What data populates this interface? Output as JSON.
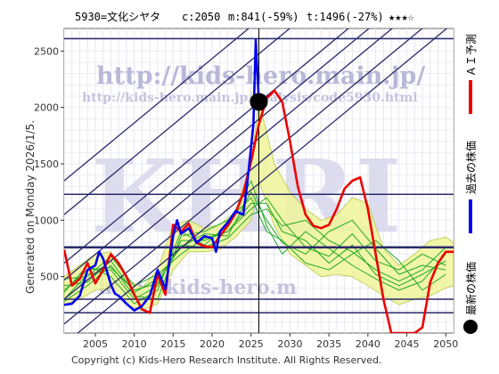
{
  "header": {
    "code": "5930=文化シヤタ",
    "current": "c:2050",
    "m_value": "m:841(-59%)",
    "t_value": "t:1496(-27%)",
    "rating": "★★★☆"
  },
  "side_text": "Generated on Monday 2026/1/5.",
  "copyright": "Copyright (c) Kids-Hero Research Institute. All Rights Reserved.",
  "watermarks": {
    "url_main": "http://kids-hero.main.jp/",
    "url_analysis": "http://kids-hero.main.jp/analysis/code5930.html",
    "logo": "KHRI",
    "url_lower": "http://kids-hero.m"
  },
  "legend": {
    "forecast": "ＡＩ予測",
    "past": "過去の株価",
    "latest": "最新の株価"
  },
  "colors": {
    "past": "#0000ee",
    "forecast": "#ee0000",
    "band_fill": "#eef59a",
    "sim": "#22aa22",
    "hline": "#2a2a6a",
    "channel": "#2a2a6a"
  },
  "chart_data": {
    "type": "line",
    "xlim": [
      2001,
      2051
    ],
    "ylim": [
      0,
      2700
    ],
    "x_ticks": [
      2005,
      2010,
      2015,
      2020,
      2025,
      2030,
      2035,
      2040,
      2045,
      2050
    ],
    "y_ticks": [
      500,
      1000,
      1500,
      2000,
      2500
    ],
    "grid": true,
    "latest_point": {
      "x": 2026.0,
      "y": 2050
    },
    "hlines": [
      180,
      300,
      760,
      1230,
      2610
    ],
    "vline": 2026.0,
    "channel_slope": 57,
    "channel_intercepts_2001": [
      -100,
      80,
      300,
      470,
      620,
      1050,
      1350
    ],
    "series": [
      {
        "role": "past",
        "x": [
          2001,
          2002,
          2003,
          2004,
          2005,
          2005.5,
          2006,
          2007,
          2007.5,
          2008,
          2009,
          2010,
          2011,
          2012,
          2013,
          2014,
          2015,
          2015.5,
          2016,
          2017,
          2018,
          2019,
          2020,
          2020.5,
          2021,
          2022,
          2023,
          2024,
          2024.5,
          2025,
          2025.3,
          2025.6,
          2026
        ],
        "y": [
          250,
          260,
          330,
          560,
          600,
          720,
          660,
          430,
          350,
          330,
          260,
          200,
          240,
          330,
          560,
          390,
          860,
          1000,
          880,
          930,
          800,
          860,
          840,
          720,
          900,
          980,
          1080,
          1050,
          1320,
          1650,
          1850,
          2600,
          2050
        ]
      },
      {
        "role": "forecast",
        "x": [
          2001,
          2002,
          2003,
          2004,
          2005,
          2006,
          2007,
          2008,
          2009,
          2010,
          2011,
          2012,
          2013,
          2014,
          2015,
          2016,
          2017,
          2018,
          2019,
          2020,
          2021,
          2022,
          2023,
          2024,
          2025,
          2026,
          2027,
          2028,
          2029,
          2030,
          2031,
          2032,
          2033,
          2034,
          2035,
          2036,
          2037,
          2038,
          2039,
          2040,
          2041,
          2042,
          2043,
          2044,
          2045,
          2046,
          2047,
          2048,
          2049,
          2050,
          2051
        ],
        "y": [
          740,
          420,
          480,
          620,
          440,
          560,
          700,
          620,
          500,
          340,
          210,
          180,
          520,
          340,
          960,
          900,
          970,
          800,
          770,
          760,
          860,
          950,
          1060,
          1240,
          1520,
          1850,
          2080,
          2150,
          2050,
          1700,
          1300,
          1050,
          950,
          930,
          960,
          1100,
          1280,
          1350,
          1380,
          1100,
          700,
          300,
          0,
          0,
          0,
          0,
          50,
          450,
          620,
          720,
          720
        ]
      },
      {
        "role": "band_upper",
        "x": [
          2001,
          2003,
          2005,
          2007,
          2009,
          2011,
          2013,
          2015,
          2017,
          2019,
          2021,
          2023,
          2025,
          2026,
          2028,
          2030,
          2032,
          2034,
          2036,
          2038,
          2040,
          2042,
          2044,
          2046,
          2048,
          2050,
          2051
        ],
        "y": [
          500,
          600,
          700,
          720,
          480,
          400,
          560,
          960,
          1000,
          930,
          960,
          1080,
          1500,
          2060,
          1500,
          1250,
          1100,
          1000,
          1050,
          1200,
          1150,
          750,
          600,
          700,
          820,
          850,
          800
        ]
      },
      {
        "role": "band_lower",
        "x": [
          2001,
          2003,
          2005,
          2007,
          2009,
          2011,
          2013,
          2015,
          2017,
          2019,
          2021,
          2023,
          2025,
          2026,
          2028,
          2030,
          2032,
          2034,
          2036,
          2038,
          2040,
          2042,
          2044,
          2046,
          2048,
          2050,
          2051
        ],
        "y": [
          250,
          300,
          380,
          400,
          250,
          200,
          260,
          560,
          720,
          720,
          740,
          850,
          1000,
          1350,
          950,
          700,
          600,
          500,
          520,
          500,
          420,
          330,
          250,
          300,
          330,
          400,
          420
        ]
      },
      {
        "role": "sim",
        "x": [
          2001,
          2004,
          2007,
          2010,
          2013,
          2016,
          2019,
          2022,
          2025,
          2027,
          2029,
          2032,
          2035,
          2038,
          2041,
          2044,
          2047,
          2050
        ],
        "y": [
          300,
          520,
          560,
          300,
          420,
          820,
          820,
          900,
          1150,
          1150,
          900,
          820,
          620,
          780,
          520,
          420,
          520,
          640
        ]
      },
      {
        "role": "sim",
        "x": [
          2001,
          2004,
          2007,
          2010,
          2013,
          2016,
          2019,
          2022,
          2025,
          2027,
          2029,
          2032,
          2035,
          2038,
          2041,
          2044,
          2047,
          2050
        ],
        "y": [
          420,
          450,
          640,
          360,
          480,
          760,
          880,
          860,
          1250,
          1000,
          800,
          700,
          900,
          1000,
          750,
          520,
          600,
          560
        ]
      },
      {
        "role": "sim",
        "x": [
          2001,
          2004,
          2007,
          2010,
          2013,
          2016,
          2019,
          2022,
          2025,
          2027,
          2029,
          2032,
          2035,
          2038,
          2041,
          2044,
          2047,
          2050
        ],
        "y": [
          360,
          600,
          500,
          260,
          380,
          900,
          780,
          960,
          1350,
          950,
          700,
          900,
          750,
          600,
          480,
          380,
          460,
          700
        ]
      },
      {
        "role": "sim",
        "x": [
          2001,
          2004,
          2007,
          2010,
          2013,
          2016,
          2019,
          2022,
          2025,
          2027,
          2029,
          2032,
          2035,
          2038,
          2041,
          2044,
          2047,
          2050
        ],
        "y": [
          480,
          500,
          680,
          420,
          520,
          700,
          840,
          900,
          1100,
          1200,
          1000,
          760,
          680,
          880,
          640,
          560,
          700,
          600
        ]
      },
      {
        "role": "sim",
        "x": [
          2001,
          2004,
          2007,
          2010,
          2013,
          2016,
          2019,
          2022,
          2025,
          2027,
          2029,
          2032,
          2035,
          2038,
          2041,
          2044,
          2047,
          2050
        ],
        "y": [
          280,
          420,
          600,
          330,
          300,
          860,
          900,
          1000,
          1200,
          900,
          820,
          620,
          560,
          700,
          820,
          640,
          380,
          520
        ]
      },
      {
        "role": "sim",
        "x": [
          2001,
          2004,
          2007,
          2010,
          2013,
          2016,
          2019,
          2022,
          2025,
          2027,
          2029,
          2032,
          2035,
          2038,
          2041,
          2044,
          2047,
          2050
        ],
        "y": [
          380,
          560,
          580,
          380,
          440,
          780,
          760,
          840,
          1050,
          1100,
          950,
          1000,
          820,
          720,
          560,
          460,
          560,
          760
        ]
      }
    ]
  }
}
